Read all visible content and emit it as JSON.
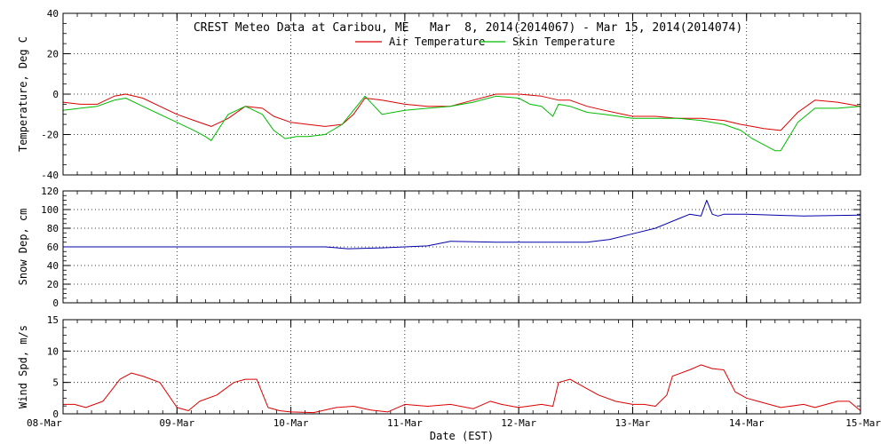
{
  "title": "CREST Meteo Data at Caribou, ME   Mar  8, 2014(2014067) - Mar 15, 2014(2014074)",
  "xlabel": "Date (EST)",
  "x_ticks": [
    "08-Mar",
    "09-Mar",
    "10-Mar",
    "11-Mar",
    "12-Mar",
    "13-Mar",
    "14-Mar",
    "15-Mar"
  ],
  "colors": {
    "air": "#dd0000",
    "skin": "#00bb00",
    "snow": "#0000aa",
    "wind": "#dd0000"
  },
  "chart_data": [
    {
      "type": "line",
      "ylabel": "Temperature, Deg C",
      "ylim": [
        -40,
        40
      ],
      "yticks": [
        -40,
        -20,
        0,
        20,
        40
      ],
      "grid": true,
      "legend": "top-center",
      "x_units": "days since 08-Mar 00:00 EST",
      "xlim": [
        0,
        7
      ],
      "series": [
        {
          "name": "Air Temperature",
          "color": "#dd0000",
          "x": [
            0,
            0.15,
            0.3,
            0.45,
            0.55,
            0.7,
            0.85,
            1.0,
            1.15,
            1.3,
            1.45,
            1.6,
            1.75,
            1.85,
            2.0,
            2.15,
            2.3,
            2.45,
            2.55,
            2.65,
            2.8,
            3.0,
            3.2,
            3.4,
            3.6,
            3.8,
            4.0,
            4.2,
            4.35,
            4.45,
            4.6,
            4.75,
            5.0,
            5.2,
            5.4,
            5.6,
            5.8,
            5.95,
            6.05,
            6.15,
            6.3,
            6.45,
            6.6,
            6.8,
            7.0
          ],
          "values": [
            -4,
            -5,
            -5,
            -1,
            0,
            -2,
            -6,
            -10,
            -13,
            -16,
            -12,
            -6,
            -7,
            -11,
            -14,
            -15,
            -16,
            -15,
            -10,
            -2,
            -3,
            -5,
            -6,
            -6,
            -3,
            0,
            0,
            -1,
            -3,
            -3,
            -6,
            -8,
            -11,
            -11,
            -12,
            -12,
            -13,
            -15,
            -16,
            -17,
            -18,
            -9,
            -3,
            -4,
            -6
          ]
        },
        {
          "name": "Skin Temperature",
          "color": "#00bb00",
          "x": [
            0,
            0.15,
            0.3,
            0.45,
            0.55,
            0.7,
            0.85,
            1.0,
            1.15,
            1.25,
            1.3,
            1.45,
            1.6,
            1.75,
            1.85,
            1.95,
            2.05,
            2.15,
            2.3,
            2.45,
            2.55,
            2.65,
            2.8,
            3.0,
            3.2,
            3.4,
            3.6,
            3.8,
            4.0,
            4.1,
            4.2,
            4.3,
            4.35,
            4.45,
            4.6,
            4.75,
            5.0,
            5.2,
            5.4,
            5.6,
            5.8,
            5.95,
            6.05,
            6.15,
            6.25,
            6.3,
            6.45,
            6.6,
            6.8,
            7.0
          ],
          "values": [
            -8,
            -7,
            -6,
            -3,
            -2,
            -6,
            -10,
            -14,
            -18,
            -21,
            -23,
            -10,
            -6,
            -10,
            -18,
            -22,
            -21,
            -21,
            -20,
            -15,
            -8,
            -1,
            -10,
            -8,
            -7,
            -6,
            -4,
            -1,
            -2,
            -5,
            -6,
            -11,
            -5,
            -6,
            -9,
            -10,
            -12,
            -12,
            -12,
            -13,
            -15,
            -18,
            -22,
            -25,
            -28,
            -28,
            -14,
            -7,
            -7,
            -6
          ]
        }
      ]
    },
    {
      "type": "line",
      "ylabel": "Snow Dep, cm",
      "ylim": [
        0,
        120
      ],
      "yticks": [
        0,
        20,
        40,
        60,
        80,
        100,
        120
      ],
      "grid": true,
      "x_units": "days since 08-Mar 00:00 EST",
      "xlim": [
        0,
        7
      ],
      "series": [
        {
          "color": "#0000aa",
          "x": [
            0,
            0.5,
            1.0,
            1.5,
            2.0,
            2.3,
            2.5,
            2.8,
            3.0,
            3.2,
            3.4,
            3.8,
            4.2,
            4.6,
            4.8,
            5.0,
            5.2,
            5.4,
            5.5,
            5.6,
            5.65,
            5.7,
            5.75,
            5.8,
            6.0,
            6.5,
            7.0
          ],
          "values": [
            60,
            60,
            60,
            60,
            60,
            60,
            58,
            59,
            60,
            61,
            66,
            65,
            65,
            65,
            68,
            74,
            80,
            90,
            95,
            93,
            110,
            95,
            93,
            95,
            95,
            93,
            94
          ]
        }
      ]
    },
    {
      "type": "line",
      "ylabel": "Wind Spd, m/s",
      "ylim": [
        0,
        15
      ],
      "yticks": [
        0,
        5,
        10,
        15
      ],
      "grid": true,
      "x_units": "days since 08-Mar 00:00 EST",
      "xlim": [
        0,
        7
      ],
      "series": [
        {
          "color": "#dd0000",
          "x": [
            0,
            0.1,
            0.2,
            0.35,
            0.5,
            0.6,
            0.7,
            0.85,
            1.0,
            1.1,
            1.2,
            1.35,
            1.5,
            1.6,
            1.7,
            1.8,
            1.9,
            2.0,
            2.2,
            2.4,
            2.55,
            2.7,
            2.85,
            3.0,
            3.2,
            3.4,
            3.6,
            3.75,
            3.85,
            4.0,
            4.2,
            4.3,
            4.35,
            4.45,
            4.55,
            4.7,
            4.85,
            5.0,
            5.1,
            5.2,
            5.3,
            5.35,
            5.5,
            5.6,
            5.7,
            5.8,
            5.9,
            6.0,
            6.1,
            6.2,
            6.3,
            6.5,
            6.6,
            6.8,
            6.9,
            7.0
          ],
          "values": [
            1.5,
            1.5,
            1.0,
            2.0,
            5.5,
            6.5,
            6.0,
            5.0,
            1.0,
            0.5,
            2.0,
            3.0,
            5.0,
            5.5,
            5.5,
            1.0,
            0.5,
            0.3,
            0.2,
            1.0,
            1.2,
            0.6,
            0.3,
            1.5,
            1.2,
            1.5,
            0.8,
            2.0,
            1.5,
            1.0,
            1.5,
            1.2,
            5.0,
            5.5,
            4.5,
            3.0,
            2.0,
            1.5,
            1.5,
            1.2,
            3.0,
            6.0,
            7.0,
            7.8,
            7.2,
            7.0,
            3.5,
            2.5,
            2.0,
            1.5,
            1.0,
            1.5,
            1.0,
            2.0,
            2.0,
            0.5
          ]
        }
      ]
    }
  ]
}
